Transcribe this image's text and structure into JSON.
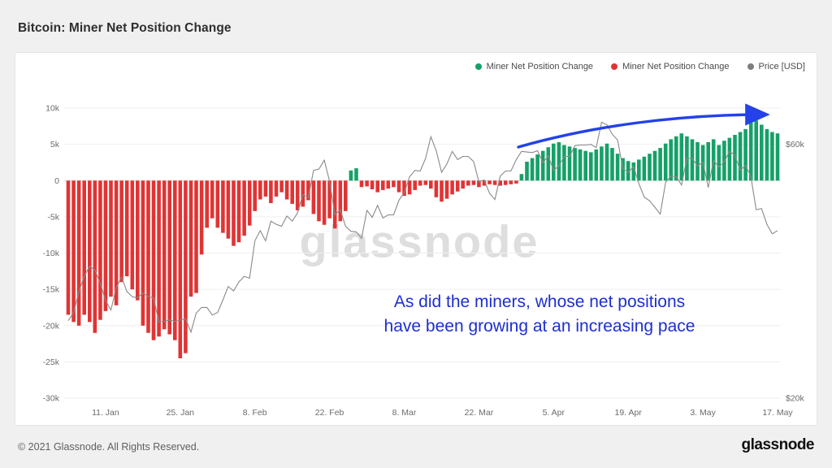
{
  "page": {
    "title": "Bitcoin: Miner Net Position Change",
    "footer": {
      "copyright": "© 2021 Glassnode. All Rights Reserved.",
      "brand": "glassnode"
    }
  },
  "legend": [
    {
      "label": "Miner Net Position Change",
      "color": "#16a068"
    },
    {
      "label": "Miner Net Position Change",
      "color": "#e03434"
    },
    {
      "label": "Price [USD]",
      "color": "#7e7e7e"
    }
  ],
  "annotation": {
    "line1": "As did the miners, whose net positions",
    "line2": "have been growing at an increasing pace",
    "color": "#1d2fd0",
    "arrow_color": "#2442e8"
  },
  "watermark": "glassnode",
  "chart_data": {
    "type": "bar",
    "title": "Bitcoin: Miner Net Position Change",
    "legend_position": "top-right",
    "grid": true,
    "x_axis": {
      "tick_labels": [
        "11. Jan",
        "25. Jan",
        "8. Feb",
        "22. Feb",
        "8. Mar",
        "22. Mar",
        "5. Apr",
        "19. Apr",
        "3. May",
        "17. May"
      ],
      "tick_positions": [
        7,
        21,
        35,
        49,
        63,
        77,
        91,
        105,
        119,
        133
      ]
    },
    "left_axis": {
      "tick_labels": [
        "10k",
        "5k",
        "0",
        "-5k",
        "-10k",
        "-15k",
        "-20k",
        "-25k",
        "-30k"
      ],
      "ticks": [
        10000,
        5000,
        0,
        -5000,
        -10000,
        -15000,
        -20000,
        -25000,
        -30000
      ],
      "range": [
        -30000,
        10000
      ]
    },
    "right_axis": {
      "tick_labels": [
        "$60k",
        "$20k"
      ],
      "ticks": [
        60000,
        20000
      ],
      "range": [
        20000,
        68000
      ]
    },
    "series": [
      {
        "name": "Miner Net Position Change",
        "type": "bar",
        "color_positive": "#16a068",
        "color_negative": "#e03434",
        "values": [
          -18500,
          -19500,
          -20000,
          -18500,
          -19500,
          -21000,
          -19200,
          -18000,
          -16000,
          -17200,
          -14000,
          -13200,
          -15000,
          -16500,
          -20000,
          -21000,
          -22000,
          -21500,
          -20500,
          -21200,
          -22000,
          -24500,
          -23800,
          -16000,
          -15500,
          -10200,
          -6500,
          -5200,
          -6500,
          -7200,
          -8000,
          -9000,
          -8500,
          -7600,
          -6200,
          -4200,
          -2600,
          -2200,
          -3100,
          -2200,
          -1600,
          -2600,
          -3200,
          -4100,
          -3600,
          -2700,
          -4600,
          -5600,
          -6100,
          -5200,
          -6600,
          -5600,
          -4200,
          1400,
          1700,
          -900,
          -800,
          -1200,
          -1600,
          -1300,
          -1100,
          -900,
          -1600,
          -2100,
          -1900,
          -1300,
          -700,
          -600,
          -1100,
          -2300,
          -2900,
          -2500,
          -1900,
          -1500,
          -1100,
          -700,
          -600,
          -900,
          -700,
          -500,
          -600,
          -700,
          -600,
          -500,
          -400,
          900,
          2600,
          3100,
          3600,
          4100,
          4600,
          5100,
          5300,
          4900,
          4700,
          4500,
          4300,
          4100,
          3900,
          4300,
          4700,
          5100,
          4500,
          3700,
          3100,
          2700,
          2500,
          2900,
          3300,
          3700,
          4100,
          4500,
          5100,
          5700,
          6100,
          6500,
          6100,
          5700,
          5300,
          4900,
          5300,
          5700,
          4900,
          5500,
          5900,
          6300,
          6700,
          7100,
          8700,
          8300,
          7700,
          7100,
          6700,
          6500
        ]
      },
      {
        "name": "Price [USD]",
        "type": "line",
        "axis": "right",
        "color": "#8a8a8a",
        "values": [
          32200,
          33500,
          36800,
          39200,
          40800,
          40200,
          38100,
          35400,
          33900,
          37400,
          39100,
          36800,
          36000,
          35800,
          36600,
          36000,
          35800,
          32000,
          32100,
          32300,
          32100,
          32300,
          32500,
          30400,
          33400,
          34300,
          34300,
          33100,
          33500,
          35500,
          37600,
          36900,
          38300,
          39200,
          38900,
          44800,
          46400,
          44800,
          47900,
          47400,
          47100,
          48700,
          47900,
          49200,
          52100,
          51600,
          55900,
          56100,
          57500,
          54200,
          48900,
          49700,
          47100,
          46300,
          46200,
          45200,
          49600,
          48500,
          50400,
          48400,
          48900,
          48900,
          51200,
          52400,
          54900,
          55900,
          55800,
          57800,
          61200,
          59000,
          55600,
          56900,
          58900,
          57600,
          58100,
          58100,
          57300,
          54100,
          54400,
          52300,
          51300,
          55000,
          55800,
          55800,
          57600,
          58900,
          58800,
          58700,
          59000,
          57100,
          58200,
          55900,
          56600,
          58100,
          58100,
          59800,
          59900,
          59900,
          60000,
          59500,
          63500,
          63100,
          61600,
          60700,
          56200,
          55600,
          56500,
          53800,
          51700,
          51100,
          50100,
          49000,
          54000,
          55000,
          54900,
          53600,
          57800,
          57800,
          56600,
          57200,
          53200,
          57500,
          56400,
          57300,
          58900,
          58300,
          55900,
          56700,
          54900,
          49700,
          49900,
          47400,
          45900,
          46400
        ]
      }
    ]
  }
}
